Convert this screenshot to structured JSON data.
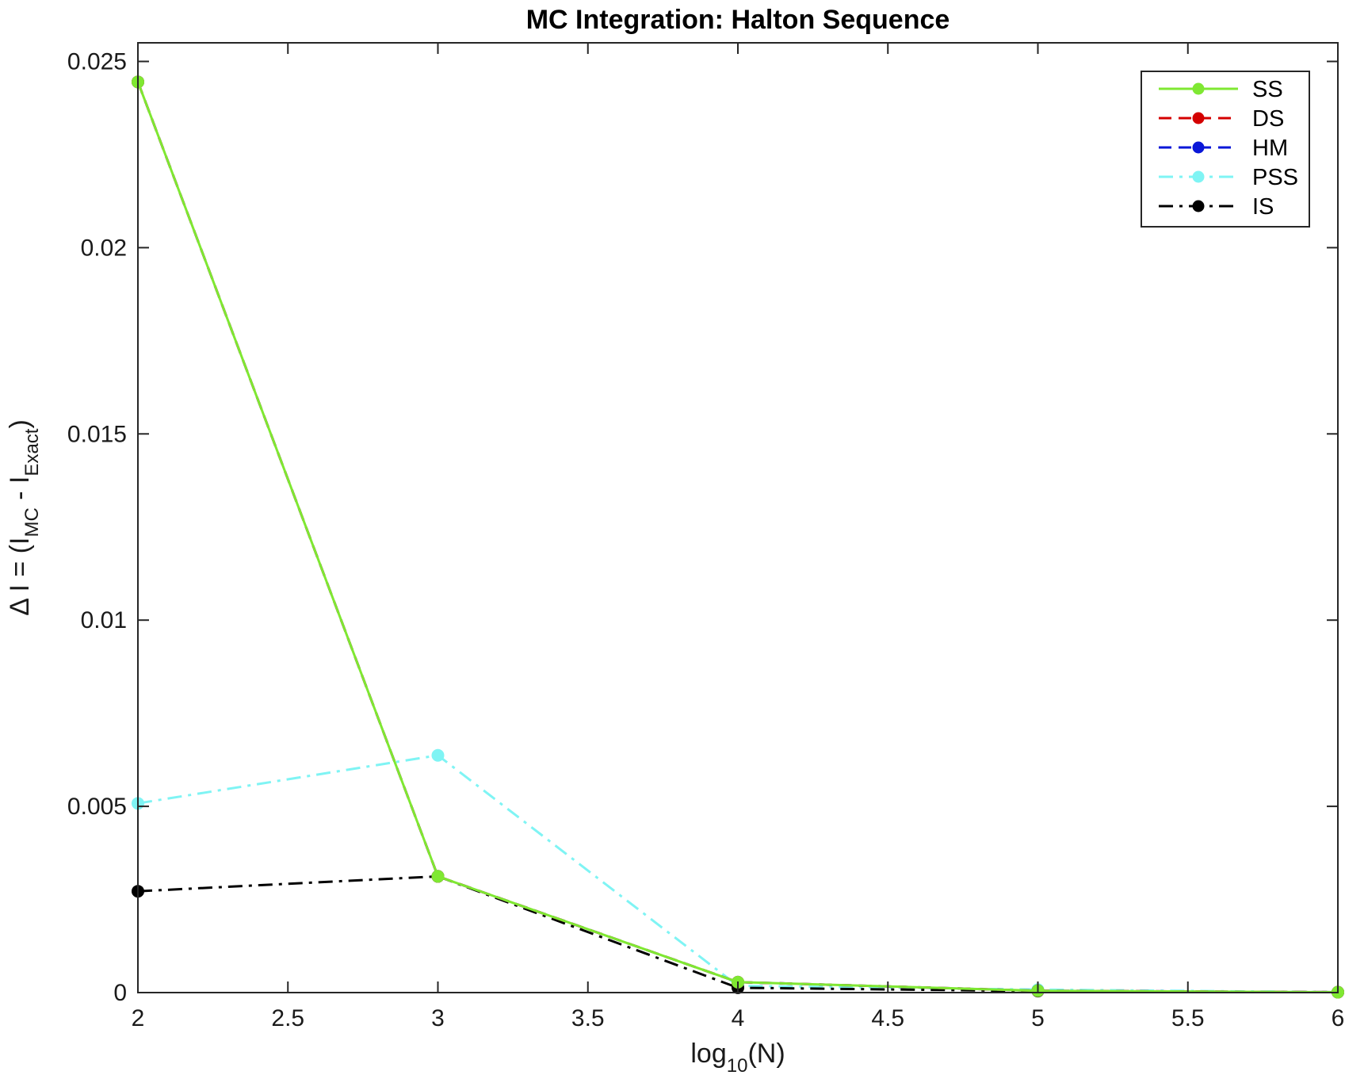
{
  "chart_data": {
    "type": "line",
    "title": "MC Integration: Halton Sequence",
    "xlabel": {
      "base": "log",
      "sub": "10",
      "rest": "(N)"
    },
    "ylabel": {
      "prefix": "Δ I = (I",
      "sub1": "MC",
      "mid": " - I",
      "sub2": "Exact",
      "suffix": ")"
    },
    "xlim": [
      2,
      6
    ],
    "ylim": [
      0,
      0.0255
    ],
    "x_ticks": [
      2,
      2.5,
      3,
      3.5,
      4,
      4.5,
      5,
      5.5,
      6
    ],
    "x_tick_labels": [
      "2",
      "2.5",
      "3",
      "3.5",
      "4",
      "4.5",
      "5",
      "5.5",
      "6"
    ],
    "y_ticks": [
      0,
      0.005,
      0.01,
      0.015,
      0.02,
      0.025
    ],
    "y_tick_labels": [
      "0",
      "0.005",
      "0.01",
      "0.015",
      "0.02",
      "0.025"
    ],
    "grid": false,
    "legend_position": "top-right",
    "x": [
      2,
      3,
      4,
      5,
      6
    ],
    "series": [
      {
        "name": "SS",
        "values": [
          0.02445,
          0.00312,
          0.00028,
          5e-05,
          1e-05
        ],
        "color": "#7fe832",
        "dash": "solid"
      },
      {
        "name": "DS",
        "values": [
          0.02445,
          0.00312,
          0.00028,
          5e-05,
          1e-05
        ],
        "color": "#d40000",
        "dash": "dashed"
      },
      {
        "name": "HM",
        "values": [
          0.02445,
          0.00312,
          0.00028,
          5e-05,
          1e-05
        ],
        "color": "#0a17d8",
        "dash": "dashed"
      },
      {
        "name": "PSS",
        "values": [
          0.00508,
          0.00637,
          0.00018,
          8e-05,
          1e-05
        ],
        "color": "#7ff4f4",
        "dash": "dashdot"
      },
      {
        "name": "IS",
        "values": [
          0.00272,
          0.00312,
          0.00013,
          4e-05,
          1e-05
        ],
        "color": "#000000",
        "dash": "dashdot"
      }
    ]
  }
}
